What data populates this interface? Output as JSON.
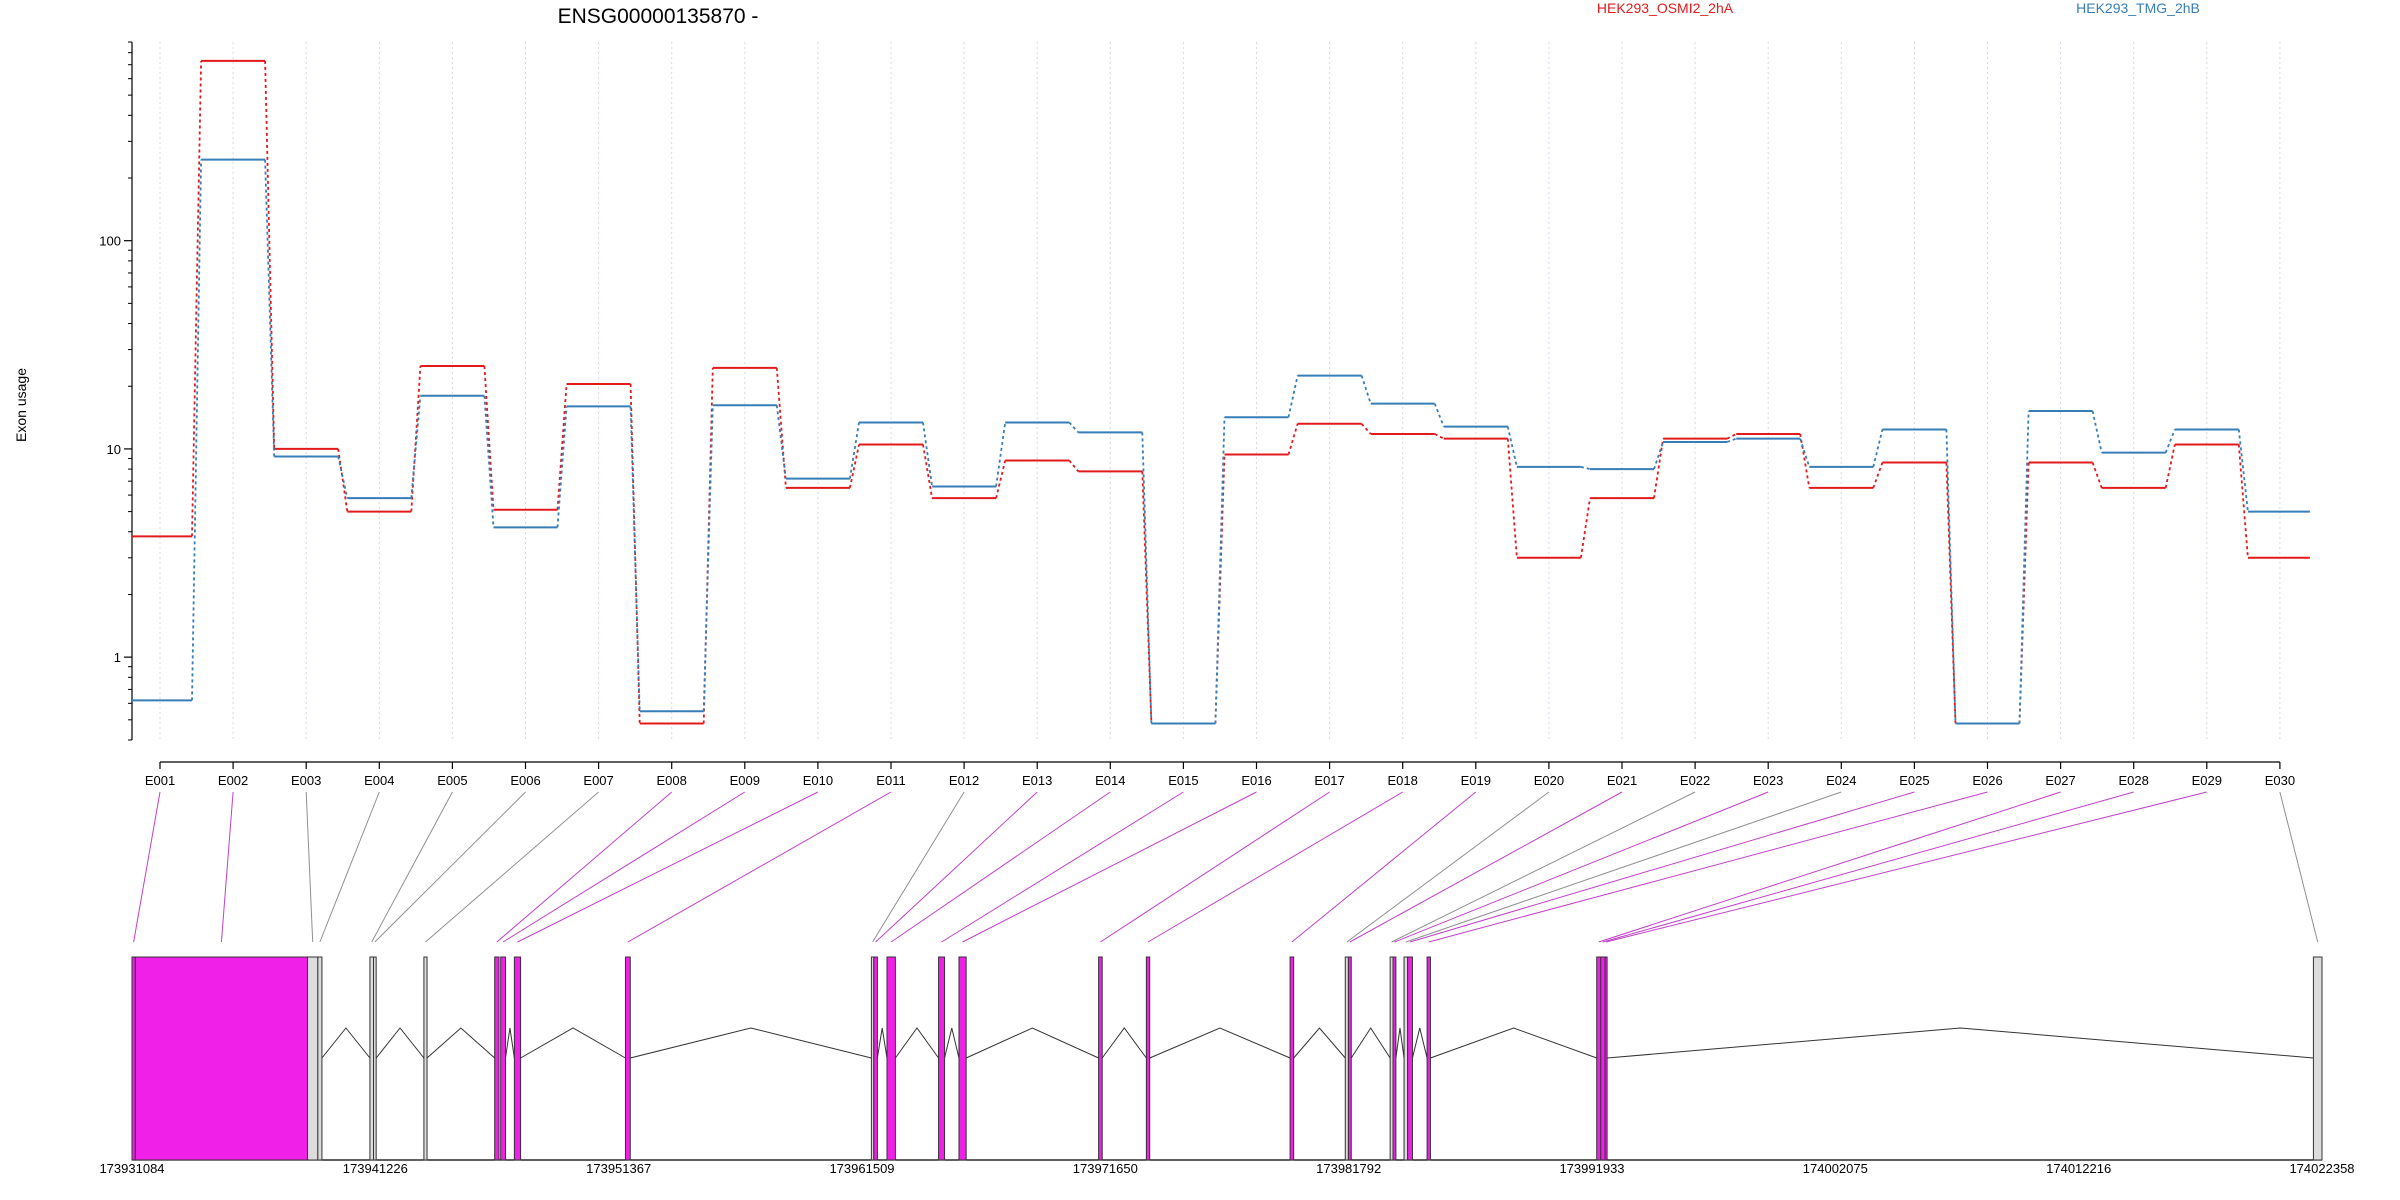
{
  "chart_data": {
    "type": "line",
    "title": "ENSG00000135870 -",
    "ylabel": "Exon usage",
    "xlabel": "",
    "y_scale": "log",
    "ylim": [
      0.4,
      900
    ],
    "y_ticks": [
      {
        "value": 1,
        "label": "1"
      },
      {
        "value": 10,
        "label": "10"
      },
      {
        "value": 100,
        "label": "100"
      }
    ],
    "legend_placement": "top",
    "grid": "vertical dotted lines at exon bins",
    "categories": [
      "E001",
      "E002",
      "E003",
      "E004",
      "E005",
      "E006",
      "E007",
      "E008",
      "E009",
      "E010",
      "E011",
      "E012",
      "E013",
      "E014",
      "E015",
      "E016",
      "E017",
      "E018",
      "E019",
      "E020",
      "E021",
      "E022",
      "E023",
      "E024",
      "E025",
      "E026",
      "E027",
      "E028",
      "E029",
      "E030"
    ],
    "series": [
      {
        "name": "HEK293_OSMI2_2hA",
        "color": "#e31a1c",
        "values": [
          3.8,
          730,
          10.0,
          5.0,
          25.0,
          5.1,
          20.5,
          0.48,
          24.5,
          6.5,
          10.5,
          5.8,
          8.8,
          7.8,
          0.48,
          9.4,
          13.2,
          11.8,
          11.2,
          3.0,
          5.8,
          11.2,
          11.8,
          6.5,
          8.6,
          0.48,
          8.6,
          6.5,
          10.5,
          3.0
        ]
      },
      {
        "name": "HEK293_TMG_2hB",
        "color": "#377eb8",
        "values": [
          0.62,
          245,
          9.2,
          5.8,
          18.0,
          4.2,
          16.0,
          0.55,
          16.2,
          7.2,
          13.4,
          6.6,
          13.4,
          12.0,
          0.48,
          14.2,
          22.5,
          16.5,
          12.8,
          8.2,
          8.0,
          10.8,
          11.2,
          8.2,
          12.4,
          0.48,
          15.2,
          9.6,
          12.4,
          5.0
        ]
      }
    ],
    "genomic_axis": {
      "ticks": [
        "173931084",
        "173941226",
        "173951367",
        "173961509",
        "173971650",
        "173981792",
        "173991933",
        "174002075",
        "174012216",
        "174022358"
      ],
      "range": [
        173931084,
        174022358
      ]
    },
    "exons": [
      {
        "id": "E001",
        "start": 173931084,
        "end": 173931220,
        "highlight": true
      },
      {
        "id": "E002",
        "start": 173931220,
        "end": 173938400,
        "highlight": true
      },
      {
        "id": "E003",
        "start": 173938400,
        "end": 173938830,
        "highlight": false
      },
      {
        "id": "E004",
        "start": 173938830,
        "end": 173939000,
        "highlight": false
      },
      {
        "id": "E005",
        "start": 173941000,
        "end": 173941150,
        "highlight": false
      },
      {
        "id": "E006",
        "start": 173941150,
        "end": 173941260,
        "highlight": false
      },
      {
        "id": "E007",
        "start": 173943250,
        "end": 173943380,
        "highlight": false
      },
      {
        "id": "E008",
        "start": 173946200,
        "end": 173946380,
        "highlight": true
      },
      {
        "id": "E009",
        "start": 173946450,
        "end": 173946650,
        "highlight": true
      },
      {
        "id": "E010",
        "start": 173947020,
        "end": 173947280,
        "highlight": true
      },
      {
        "id": "E011",
        "start": 173951650,
        "end": 173951850,
        "highlight": true
      },
      {
        "id": "E012",
        "start": 173961900,
        "end": 173962000,
        "highlight": false
      },
      {
        "id": "E013",
        "start": 173962000,
        "end": 173962150,
        "highlight": true
      },
      {
        "id": "E014",
        "start": 173962550,
        "end": 173962900,
        "highlight": true
      },
      {
        "id": "E015",
        "start": 173964700,
        "end": 173964950,
        "highlight": true
      },
      {
        "id": "E016",
        "start": 173965550,
        "end": 173965850,
        "highlight": true
      },
      {
        "id": "E017",
        "start": 173971370,
        "end": 173971520,
        "highlight": true
      },
      {
        "id": "E018",
        "start": 173973360,
        "end": 173973500,
        "highlight": true
      },
      {
        "id": "E019",
        "start": 173979350,
        "end": 173979500,
        "highlight": true
      },
      {
        "id": "E020",
        "start": 173981650,
        "end": 173981780,
        "highlight": false
      },
      {
        "id": "E021",
        "start": 173981780,
        "end": 173981900,
        "highlight": true
      },
      {
        "id": "E022",
        "start": 173983520,
        "end": 173983640,
        "highlight": false
      },
      {
        "id": "E023",
        "start": 173983640,
        "end": 173983760,
        "highlight": true
      },
      {
        "id": "E024",
        "start": 173984100,
        "end": 173984250,
        "highlight": false
      },
      {
        "id": "E025",
        "start": 173984250,
        "end": 173984450,
        "highlight": true
      },
      {
        "id": "E026",
        "start": 173985060,
        "end": 173985200,
        "highlight": true
      },
      {
        "id": "E027",
        "start": 173992130,
        "end": 173992300,
        "highlight": true
      },
      {
        "id": "E028",
        "start": 173992300,
        "end": 173992480,
        "highlight": true
      },
      {
        "id": "E029",
        "start": 173992480,
        "end": 173992560,
        "highlight": true
      },
      {
        "id": "E030",
        "start": 174022000,
        "end": 174022358,
        "highlight": false
      }
    ],
    "exon_colors": {
      "highlight": "#f020e8",
      "normal": "#dcdcdc",
      "border": "#333333",
      "connector_highlight": "#c040c8",
      "connector_normal": "#909090"
    }
  }
}
